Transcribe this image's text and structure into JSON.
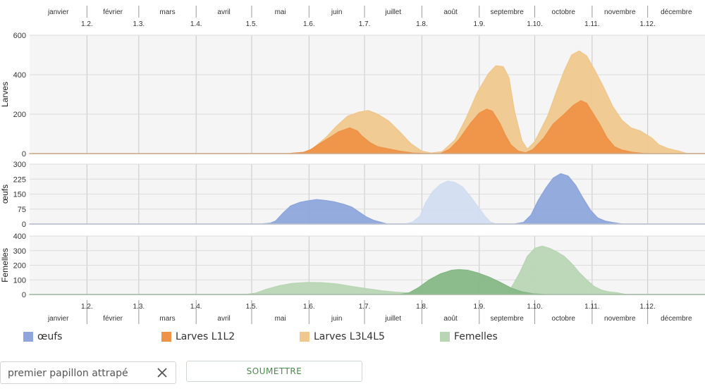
{
  "chart_data": {
    "type": "area",
    "months": [
      "janvier",
      "février",
      "mars",
      "avril",
      "mai",
      "juin",
      "juillet",
      "août",
      "septembre",
      "octobre",
      "novembre",
      "décembre"
    ],
    "date_ticks": [
      "1.2.",
      "1.3.",
      "1.4.",
      "1.5.",
      "1.6.",
      "1.7.",
      "1.8.",
      "1.9.",
      "1.10.",
      "1.11.",
      "1.12."
    ],
    "x_domain_days": [
      0,
      365
    ],
    "panels": [
      {
        "ylabel": "Larves",
        "ylim": [
          0,
          600
        ],
        "yticks": [
          0,
          200,
          400,
          600
        ],
        "series": [
          {
            "name": "Larves L3L4L5",
            "color": "#f0c88e",
            "points": [
              [
                0,
                0
              ],
              [
                140,
                0
              ],
              [
                148,
                4
              ],
              [
                153,
                25
              ],
              [
                160,
                80
              ],
              [
                166,
                140
              ],
              [
                172,
                190
              ],
              [
                178,
                210
              ],
              [
                183,
                218
              ],
              [
                188,
                200
              ],
              [
                194,
                165
              ],
              [
                200,
                110
              ],
              [
                206,
                50
              ],
              [
                212,
                12
              ],
              [
                217,
                2
              ],
              [
                223,
                10
              ],
              [
                230,
                70
              ],
              [
                236,
                180
              ],
              [
                242,
                310
              ],
              [
                248,
                405
              ],
              [
                252,
                445
              ],
              [
                256,
                440
              ],
              [
                259,
                385
              ],
              [
                262,
                215
              ],
              [
                266,
                65
              ],
              [
                269,
                22
              ],
              [
                273,
                60
              ],
              [
                280,
                190
              ],
              [
                285,
                320
              ],
              [
                289,
                420
              ],
              [
                293,
                500
              ],
              [
                297,
                520
              ],
              [
                301,
                495
              ],
              [
                305,
                430
              ],
              [
                310,
                340
              ],
              [
                315,
                240
              ],
              [
                320,
                170
              ],
              [
                325,
                130
              ],
              [
                330,
                115
              ],
              [
                336,
                80
              ],
              [
                340,
                45
              ],
              [
                345,
                25
              ],
              [
                351,
                12
              ],
              [
                355,
                0
              ],
              [
                365,
                0
              ]
            ]
          },
          {
            "name": "Larves L1L2",
            "color": "#ee9247",
            "points": [
              [
                0,
                0
              ],
              [
                140,
                0
              ],
              [
                148,
                6
              ],
              [
                152,
                20
              ],
              [
                156,
                45
              ],
              [
                162,
                80
              ],
              [
                167,
                110
              ],
              [
                173,
                130
              ],
              [
                177,
                115
              ],
              [
                180,
                85
              ],
              [
                184,
                55
              ],
              [
                188,
                35
              ],
              [
                193,
                25
              ],
              [
                200,
                12
              ],
              [
                207,
                3
              ],
              [
                214,
                0
              ],
              [
                222,
                0
              ],
              [
                227,
                22
              ],
              [
                232,
                70
              ],
              [
                238,
                150
              ],
              [
                243,
                205
              ],
              [
                247,
                225
              ],
              [
                250,
                215
              ],
              [
                254,
                155
              ],
              [
                257,
                95
              ],
              [
                260,
                45
              ],
              [
                264,
                12
              ],
              [
                268,
                4
              ],
              [
                272,
                20
              ],
              [
                278,
                80
              ],
              [
                283,
                150
              ],
              [
                289,
                200
              ],
              [
                294,
                245
              ],
              [
                298,
                268
              ],
              [
                301,
                255
              ],
              [
                304,
                210
              ],
              [
                308,
                150
              ],
              [
                312,
                80
              ],
              [
                316,
                35
              ],
              [
                320,
                18
              ],
              [
                326,
                6
              ],
              [
                332,
                0
              ],
              [
                365,
                0
              ]
            ]
          }
        ]
      },
      {
        "ylabel": "œufs",
        "ylim": [
          0,
          300
        ],
        "yticks": [
          0,
          75,
          150,
          225,
          300
        ],
        "series": [
          {
            "name": "œufs",
            "color": "#8ea6dc",
            "points": [
              [
                0,
                0
              ],
              [
                125,
                0
              ],
              [
                130,
                4
              ],
              [
                133,
                15
              ],
              [
                137,
                55
              ],
              [
                141,
                90
              ],
              [
                146,
                108
              ],
              [
                150,
                115
              ],
              [
                155,
                122
              ],
              [
                160,
                118
              ],
              [
                165,
                110
              ],
              [
                170,
                98
              ],
              [
                174,
                85
              ],
              [
                178,
                60
              ],
              [
                182,
                35
              ],
              [
                186,
                18
              ],
              [
                190,
                8
              ],
              [
                193,
                0
              ],
              [
                262,
                0
              ],
              [
                267,
                8
              ],
              [
                271,
                45
              ],
              [
                275,
                120
              ],
              [
                279,
                180
              ],
              [
                283,
                230
              ],
              [
                287,
                252
              ],
              [
                291,
                240
              ],
              [
                295,
                195
              ],
              [
                299,
                130
              ],
              [
                303,
                70
              ],
              [
                307,
                30
              ],
              [
                311,
                15
              ],
              [
                316,
                6
              ],
              [
                320,
                0
              ],
              [
                365,
                0
              ]
            ]
          },
          {
            "name": "œufs (1re génération)",
            "color": "#d2ddf0",
            "points": [
              [
                0,
                0
              ],
              [
                203,
                0
              ],
              [
                207,
                10
              ],
              [
                211,
                40
              ],
              [
                214,
                105
              ],
              [
                218,
                165
              ],
              [
                222,
                198
              ],
              [
                226,
                215
              ],
              [
                230,
                208
              ],
              [
                234,
                185
              ],
              [
                238,
                140
              ],
              [
                242,
                90
              ],
              [
                246,
                40
              ],
              [
                249,
                10
              ],
              [
                252,
                0
              ],
              [
                365,
                0
              ]
            ]
          }
        ]
      },
      {
        "ylabel": "Femelles",
        "ylim": [
          0,
          400
        ],
        "yticks": [
          0,
          100,
          200,
          300,
          400
        ],
        "series": [
          {
            "name": "Femelles",
            "color": "#b8d6b4",
            "points": [
              [
                0,
                0
              ],
              [
                117,
                0
              ],
              [
                122,
                8
              ],
              [
                128,
                35
              ],
              [
                135,
                60
              ],
              [
                142,
                75
              ],
              [
                150,
                82
              ],
              [
                158,
                80
              ],
              [
                166,
                72
              ],
              [
                174,
                55
              ],
              [
                182,
                40
              ],
              [
                190,
                25
              ],
              [
                198,
                15
              ],
              [
                207,
                8
              ],
              [
                215,
                0
              ],
              [
                255,
                0
              ],
              [
                258,
                8
              ],
              [
                261,
                60
              ],
              [
                265,
                150
              ],
              [
                269,
                260
              ],
              [
                273,
                315
              ],
              [
                277,
                330
              ],
              [
                281,
                315
              ],
              [
                285,
                290
              ],
              [
                289,
                260
              ],
              [
                293,
                210
              ],
              [
                297,
                150
              ],
              [
                301,
                100
              ],
              [
                305,
                55
              ],
              [
                309,
                30
              ],
              [
                313,
                18
              ],
              [
                318,
                10
              ],
              [
                322,
                0
              ],
              [
                365,
                0
              ]
            ]
          },
          {
            "name": "Femelles (1re génération)",
            "color": "#86b886",
            "points": [
              [
                0,
                0
              ],
              [
                200,
                0
              ],
              [
                205,
                10
              ],
              [
                210,
                45
              ],
              [
                216,
                100
              ],
              [
                222,
                140
              ],
              [
                228,
                165
              ],
              [
                232,
                170
              ],
              [
                237,
                165
              ],
              [
                242,
                148
              ],
              [
                248,
                120
              ],
              [
                254,
                85
              ],
              [
                260,
                45
              ],
              [
                266,
                18
              ],
              [
                272,
                5
              ],
              [
                278,
                0
              ],
              [
                365,
                0
              ]
            ]
          }
        ]
      }
    ],
    "legend": [
      {
        "label": "œufs",
        "color": "#8ea6dc"
      },
      {
        "label": "Larves L1L2",
        "color": "#ee9247"
      },
      {
        "label": "Larves L3L4L5",
        "color": "#f0c88e"
      },
      {
        "label": "Femelles",
        "color": "#b8d6b4"
      }
    ]
  },
  "form": {
    "input_placeholder": "premier papillon attrapé",
    "submit_label": "SOUMETTRE",
    "accent_color": "#4a8a4a"
  }
}
